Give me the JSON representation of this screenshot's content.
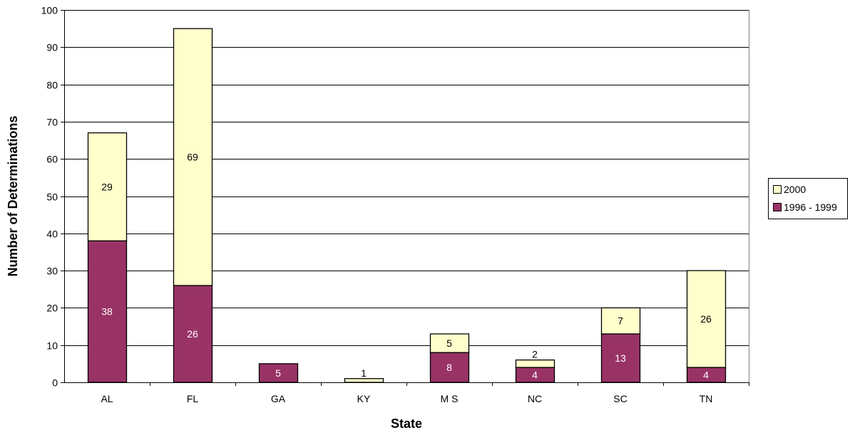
{
  "chart_data": {
    "type": "bar",
    "stacked": true,
    "categories": [
      "AL",
      "FL",
      "GA",
      "KY",
      "M S",
      "NC",
      "SC",
      "TN"
    ],
    "series": [
      {
        "name": "1996 - 1999",
        "values": [
          38,
          26,
          5,
          0,
          8,
          4,
          13,
          4
        ],
        "color": "#993366",
        "label_color": "#ffffff"
      },
      {
        "name": "2000",
        "values": [
          29,
          69,
          0,
          1,
          5,
          2,
          7,
          26
        ],
        "color": "#ffffcc",
        "label_color": "#000000"
      }
    ],
    "xlabel": "State",
    "ylabel": "Number of Determinations",
    "ylim": [
      0,
      100
    ],
    "yticks": [
      0,
      10,
      20,
      30,
      40,
      50,
      60,
      70,
      80,
      90,
      100
    ],
    "grid": true,
    "legend_position": "right",
    "legend_order": [
      "2000",
      "1996 - 1999"
    ]
  }
}
